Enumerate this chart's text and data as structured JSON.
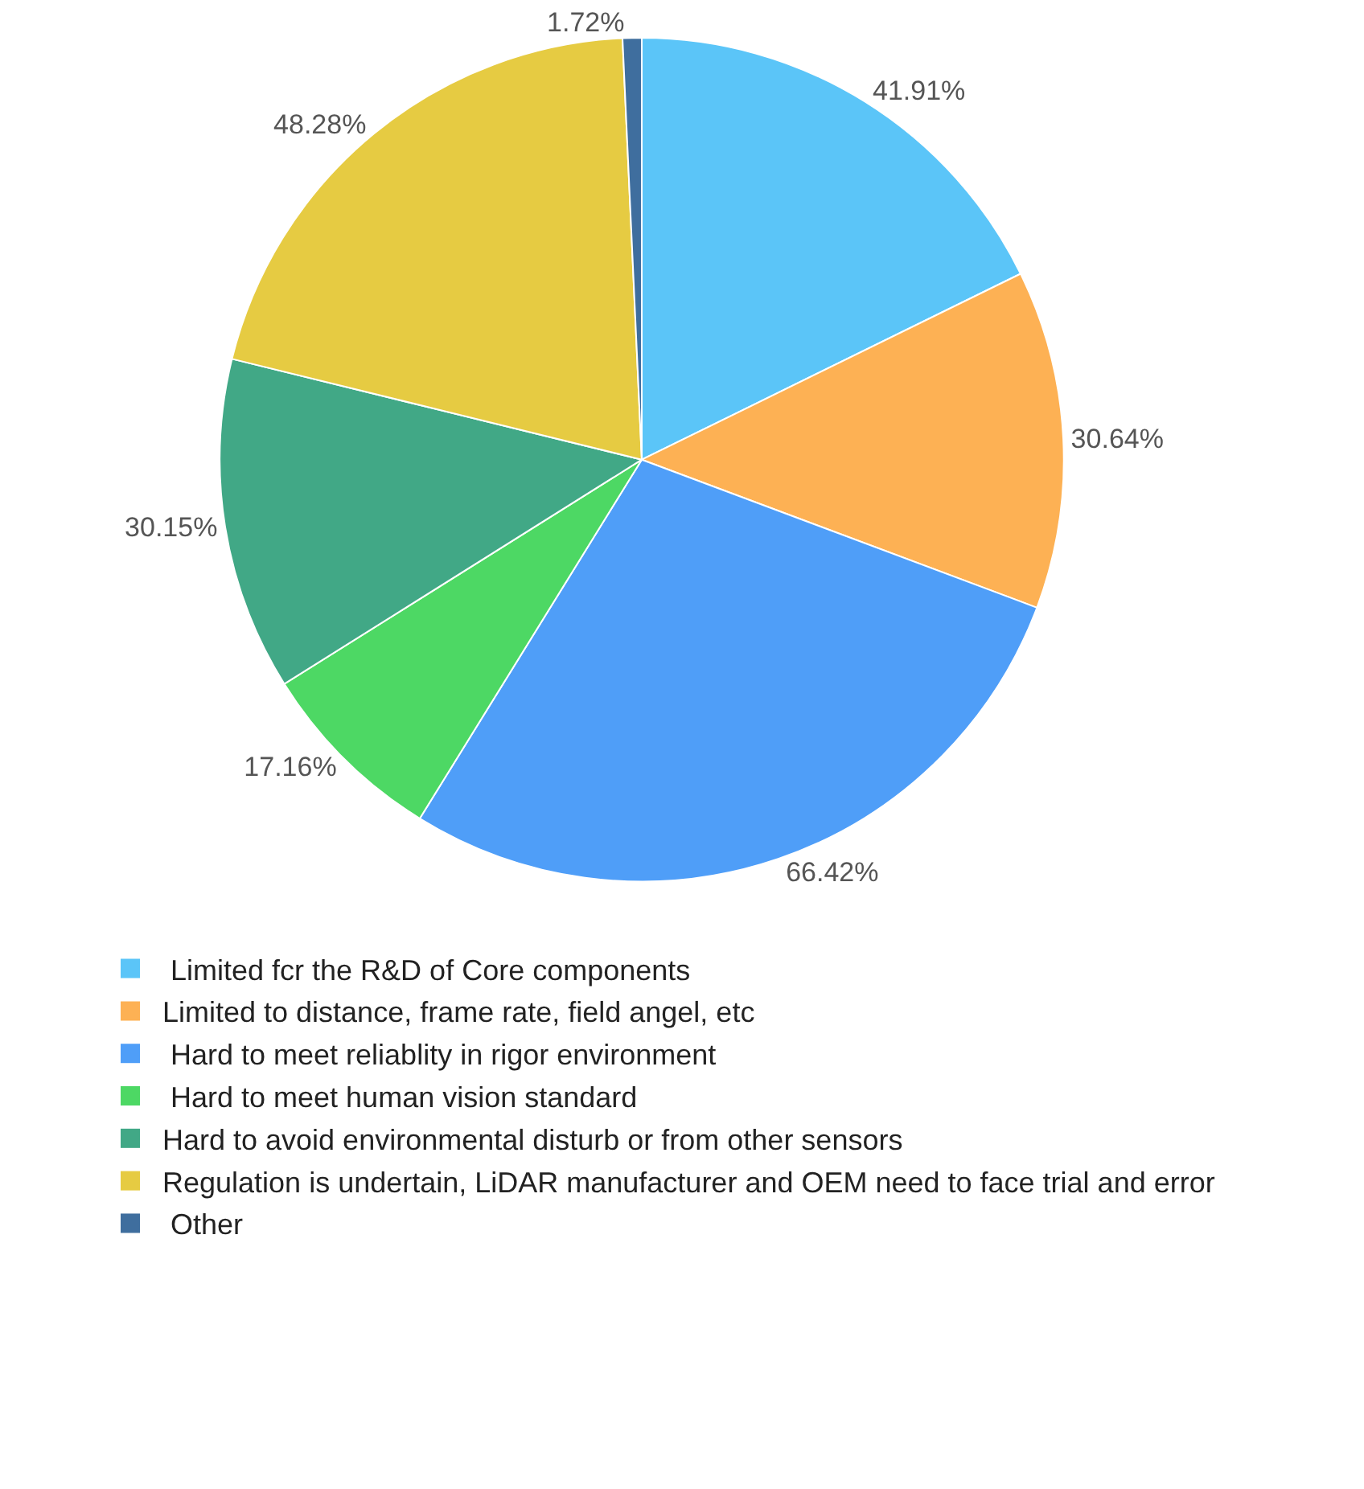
{
  "chart_data": {
    "type": "pie",
    "categories": [
      " Limited fcr the R&D of Core components",
      "Limited to distance, frame rate, field angel, etc",
      " Hard to meet reliablity in rigor environment",
      " Hard to meet human vision standard",
      "Hard to avoid environmental disturb or from other sensors",
      "Regulation is undertain, LiDAR manufacturer and OEM need to face trial and error",
      " Other"
    ],
    "values": [
      41.91,
      30.64,
      66.42,
      17.16,
      30.15,
      48.28,
      1.72
    ],
    "colors": [
      "#5bc5f8",
      "#fdb154",
      "#4f9ef8",
      "#4dd864",
      "#41a886",
      "#e6cb42",
      "#3f6e9e"
    ],
    "value_labels": [
      "41.91%",
      "30.64%",
      "66.42%",
      "17.16%",
      "30.15%",
      "48.28%",
      "1.72%"
    ],
    "legend": "bottom"
  }
}
